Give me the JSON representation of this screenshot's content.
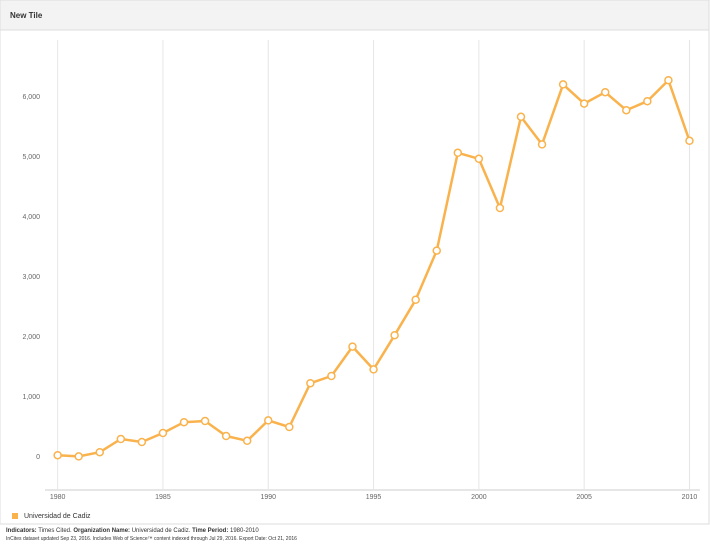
{
  "header": {
    "title": "New Tile"
  },
  "chart_data": {
    "type": "line",
    "x": [
      1980,
      1981,
      1982,
      1983,
      1984,
      1985,
      1986,
      1987,
      1988,
      1989,
      1990,
      1991,
      1992,
      1993,
      1994,
      1995,
      1996,
      1997,
      1998,
      1999,
      2000,
      2001,
      2002,
      2003,
      2004,
      2005,
      2006,
      2007,
      2008,
      2009,
      2010
    ],
    "series": [
      {
        "name": "Universidad de Cadiz",
        "color": "#f9b24c",
        "values": [
          30,
          10,
          80,
          300,
          250,
          400,
          580,
          600,
          350,
          270,
          610,
          500,
          1230,
          1350,
          1840,
          1460,
          2030,
          2620,
          3440,
          5070,
          4970,
          4150,
          5670,
          5210,
          6210,
          5890,
          6080,
          5780,
          5930,
          6280,
          5270
        ]
      }
    ],
    "xlim": [
      1979.4,
      2010.5
    ],
    "xticks": [
      1980,
      1985,
      1990,
      1995,
      2000,
      2005,
      2010
    ],
    "ylim": [
      -550,
      6950
    ],
    "yticks": [
      0,
      {
        "value": 1000,
        "label": "1,000"
      },
      {
        "value": 2000,
        "label": "2,000"
      },
      {
        "value": 3000,
        "label": "3,000"
      },
      {
        "value": 4000,
        "label": "4,000"
      },
      {
        "value": 5000,
        "label": "5,000"
      },
      {
        "value": 6000,
        "label": "6,000"
      }
    ],
    "grid": "x",
    "legend": "bottom-left"
  },
  "footer": {
    "l1": "Indicators:",
    "v1": "Times Cited.",
    "l2": "Organization Name:",
    "v2": "Universidad de Cadiz.",
    "l3": "Time Period:",
    "v3": "1980-2010",
    "note": "InCites dataset updated Sep 23, 2016. Includes Web of Science™ content indexed through Jul 29, 2016. Export Date: Oct 21, 2016"
  }
}
